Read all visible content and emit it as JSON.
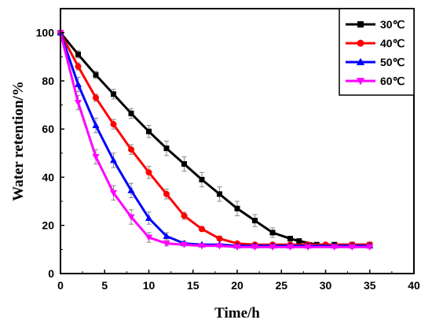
{
  "chart_data": {
    "type": "line",
    "xlabel": "Time/h",
    "ylabel": "Water retention/%",
    "xlim": [
      0,
      40
    ],
    "ylim": [
      0,
      110
    ],
    "xticks": [
      0,
      5,
      10,
      15,
      20,
      25,
      30,
      35,
      40
    ],
    "yticks": [
      0,
      20,
      40,
      60,
      80,
      100
    ],
    "grid": false,
    "legend_position": "top-right",
    "series": [
      {
        "name": "30℃",
        "color": "#000000",
        "marker": "square",
        "x": [
          0,
          2,
          4,
          6,
          8,
          10,
          12,
          14,
          16,
          18,
          20,
          22,
          24,
          26,
          27,
          29,
          31,
          33,
          35
        ],
        "y": [
          100,
          91,
          82.5,
          74.5,
          66.5,
          59,
          52,
          45.5,
          39,
          33,
          27,
          22,
          17,
          14.5,
          13.5,
          12,
          12,
          12,
          12
        ],
        "err": [
          0,
          1.5,
          1.5,
          2,
          2,
          2.5,
          3,
          3,
          3,
          3,
          3,
          2.5,
          2,
          1,
          0.5,
          0.5,
          0.5,
          0.5,
          0.5
        ]
      },
      {
        "name": "40℃",
        "color": "#ff0000",
        "marker": "circle",
        "x": [
          0,
          2,
          4,
          6,
          8,
          10,
          12,
          14,
          16,
          18,
          20,
          22,
          24,
          26,
          28,
          30,
          33,
          35
        ],
        "y": [
          100,
          86,
          73,
          62,
          51.5,
          42,
          33,
          24,
          18.5,
          14.5,
          12.5,
          12,
          12,
          12,
          12,
          12,
          12,
          12
        ],
        "err": [
          0,
          1.5,
          1.5,
          2,
          2,
          2.5,
          2,
          1.5,
          1,
          1,
          0.5,
          0.5,
          0.5,
          0.5,
          0.5,
          0.5,
          0.5,
          0.5
        ]
      },
      {
        "name": "50℃",
        "color": "#0000ff",
        "marker": "triangle-up",
        "x": [
          0,
          2,
          4,
          6,
          8,
          10,
          12,
          14,
          16,
          18,
          20,
          22,
          24,
          26,
          28,
          31,
          33,
          35
        ],
        "y": [
          100,
          78.5,
          61.5,
          47,
          34.5,
          23,
          15.5,
          12.5,
          12,
          12,
          11.5,
          11.5,
          11.5,
          11.5,
          11.5,
          11.5,
          11.5,
          11.5
        ],
        "err": [
          0,
          3,
          3,
          3,
          3,
          2.5,
          1.5,
          1,
          0.5,
          0.5,
          0.5,
          0.5,
          0.5,
          0.5,
          0.5,
          0.5,
          0.5,
          0.5
        ]
      },
      {
        "name": "60℃",
        "color": "#ff00ff",
        "marker": "triangle-down",
        "x": [
          0,
          2,
          4,
          6,
          8,
          10,
          12,
          14,
          16,
          18,
          20,
          22,
          24,
          26,
          28,
          31,
          33,
          35
        ],
        "y": [
          100,
          71,
          48.5,
          33.5,
          23.5,
          15,
          12.5,
          12,
          11.5,
          11.5,
          11,
          11,
          11,
          11,
          11,
          11,
          11,
          11
        ],
        "err": [
          0,
          3,
          3,
          3,
          3,
          2,
          1,
          0.5,
          0.5,
          0.5,
          0.5,
          0.5,
          0.5,
          0.5,
          0.5,
          0.5,
          0.5,
          0.5
        ]
      }
    ]
  }
}
